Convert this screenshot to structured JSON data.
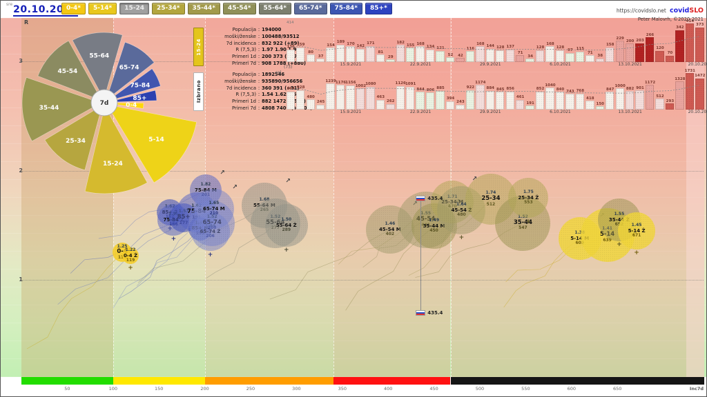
{
  "header": {
    "weekday": "sre",
    "date": "20.10.2021",
    "site_url": "https://covidslo.net",
    "brand_covid": "covid",
    "brand_slo": "SLO",
    "credit": "Peter Malovrh, ©2020-2021",
    "age_buttons": [
      {
        "label": "0-4*",
        "bg": "#f3c713",
        "fg": "#ffffff",
        "selected": false
      },
      {
        "label": "5-14*",
        "bg": "#e9c81d",
        "fg": "#ffffff",
        "selected": false
      },
      {
        "label": "15-24",
        "bg": "#a0a0a0",
        "fg": "#ececec",
        "selected": true
      },
      {
        "label": "25-34*",
        "bg": "#b3a63e",
        "fg": "#ffffff",
        "selected": false
      },
      {
        "label": "35-44*",
        "bg": "#a29a4b",
        "fg": "#ffffff",
        "selected": false
      },
      {
        "label": "45-54*",
        "bg": "#909058",
        "fg": "#ffffff",
        "selected": false
      },
      {
        "label": "55-64*",
        "bg": "#7c7f6e",
        "fg": "#ffffff",
        "selected": false
      },
      {
        "label": "65-74*",
        "bg": "#5a6a9b",
        "fg": "#ffffff",
        "selected": false
      },
      {
        "label": "75-84*",
        "bg": "#3c55b2",
        "fg": "#ffffff",
        "selected": false
      },
      {
        "label": "85+*",
        "bg": "#2d43c0",
        "fg": "#ffffff",
        "selected": false
      }
    ]
  },
  "info_panels": [
    {
      "tab": "15-24",
      "tab_bg": "#e3c51c",
      "tab_fg": "#ffffff",
      "rows": [
        [
          "Populacija",
          "194000"
        ],
        [
          "moški/ženske",
          "100488/93512"
        ],
        [
          "7d incidenca",
          "832 922 (+89)"
        ],
        [
          "R (7,5,3)",
          "1.97 1.90 1.92"
        ],
        [
          "Primeri 1d",
          "200 373 (+173)"
        ],
        [
          "Primeri 7d",
          "908 1788 (+880)"
        ]
      ]
    },
    {
      "tab": "Izbrano",
      "tab_bg": "#ffffff",
      "tab_fg": "#222222",
      "rows": [
        [
          "Populacija",
          "1892546"
        ],
        [
          "moški/ženske",
          "935890/956656"
        ],
        [
          "7d incidenca",
          "360 391 (+31)"
        ],
        [
          "R (7,5,3)",
          "1.54 1.62 1.66"
        ],
        [
          "Primeri 1d",
          "882 1472 (+590)"
        ],
        [
          "Primeri 7d",
          "4808 7409 (+2601)"
        ]
      ]
    }
  ],
  "aux_labels": {
    "sel": "sel.",
    "count": "(73)",
    "chartA_max": "414"
  },
  "chart_data": [
    {
      "type": "bar",
      "name": "bars-age-15-24",
      "date_ticks": [
        {
          "index": 6,
          "label": "15.9.2021"
        },
        {
          "index": 13,
          "label": "22.9.2021"
        },
        {
          "index": 20,
          "label": "29.9.2021"
        },
        {
          "index": 27,
          "label": "6.10.2021"
        },
        {
          "index": 34,
          "label": "13.10.2021"
        },
        {
          "index": 41,
          "label": "20.10.2021"
        }
      ],
      "values": [
        136,
        159,
        80,
        37,
        154,
        189,
        170,
        142,
        171,
        81,
        29,
        182,
        155,
        168,
        134,
        121,
        52,
        42,
        116,
        168,
        144,
        128,
        137,
        71,
        34,
        128,
        168,
        128,
        97,
        115,
        71,
        38,
        158,
        229,
        200,
        203,
        266,
        120,
        70,
        342,
        414,
        373
      ],
      "ymax": 430
    },
    {
      "type": "bar",
      "name": "bars-izbrano",
      "date_ticks": [
        {
          "index": 6,
          "label": "15.9.2021"
        },
        {
          "index": 13,
          "label": "22.9.2021"
        },
        {
          "index": 20,
          "label": "29.9.2021"
        },
        {
          "index": 27,
          "label": "6.10.2021"
        },
        {
          "index": 34,
          "label": "13.10.2021"
        },
        {
          "index": 41,
          "label": "20.10.2021"
        }
      ],
      "values": [
        864,
        928,
        480,
        245,
        1239,
        1176,
        1156,
        1002,
        1080,
        463,
        262,
        1126,
        1091,
        844,
        806,
        885,
        394,
        243,
        922,
        1174,
        884,
        845,
        856,
        461,
        191,
        852,
        1040,
        840,
        743,
        768,
        418,
        150,
        847,
        1000,
        882,
        901,
        1172,
        512,
        293,
        1328,
        1731,
        1472
      ],
      "ymax": 1830
    },
    {
      "type": "pie",
      "name": "age-rose",
      "center_label": "7d",
      "wedges": [
        {
          "label": "55-64",
          "a0": -28,
          "a1": 16,
          "r": 97,
          "color": "#787c85"
        },
        {
          "label": "65-74",
          "a0": 18,
          "a1": 52,
          "r": 88,
          "color": "#5a6a9b"
        },
        {
          "label": "75-84",
          "a0": 54,
          "a1": 74,
          "r": 80,
          "color": "#4156af"
        },
        {
          "label": "85+",
          "a0": 76,
          "a1": 88,
          "r": 71,
          "color": "#2c40b0"
        },
        {
          "label": "0-4",
          "a0": 90,
          "a1": 99,
          "r": 52,
          "color": "#fed60a"
        },
        {
          "label": "5-14",
          "a0": 101,
          "a1": 149,
          "r": 132,
          "color": "#eed318"
        },
        {
          "label": "15-24",
          "a0": 151,
          "a1": 193,
          "r": 127,
          "color": "#d5ba2e"
        },
        {
          "label": "25-34",
          "a0": 195,
          "a1": 239,
          "r": 97,
          "color": "#b6a63f"
        },
        {
          "label": "35-44",
          "a0": 241,
          "a1": 289,
          "r": 114,
          "color": "#9a9752"
        },
        {
          "label": "45-54",
          "a0": 291,
          "a1": 331,
          "r": 99,
          "color": "#8b8b61"
        }
      ]
    },
    {
      "type": "scatter",
      "name": "r-vs-inc7d",
      "y_axis": {
        "label": "R",
        "ticks": [
          1,
          2,
          3
        ]
      },
      "x_axis": {
        "label": "Inc7d",
        "ticks": [
          50,
          100,
          150,
          200,
          250,
          300,
          350,
          400,
          450,
          500,
          550,
          600,
          650
        ],
        "bands": [
          {
            "from": 0,
            "to": 100,
            "color": "#22dd00",
            "overlay": "rgba(196,150,86,0.30)"
          },
          {
            "from": 100,
            "to": 200,
            "color": "#ffe800",
            "overlay": "rgba(235,160,110,0.10)"
          },
          {
            "from": 200,
            "to": 340,
            "color": "#ff9d00",
            "overlay": "rgba(245,120,95,0.16)"
          },
          {
            "from": 340,
            "to": 468,
            "color": "#ff1111",
            "overlay": "rgba(246,90,80,0.20)"
          },
          {
            "from": 468,
            "to": 745,
            "color": "#151515",
            "overlay": "rgba(242,105,95,0.22)"
          }
        ]
      },
      "marker": {
        "label": "435.4",
        "value": 435.4
      },
      "families": {
        "85": {
          "fill": "rgba(70,86,190,0.60)",
          "text": "#222a6e",
          "line": "#5566bb"
        },
        "75": {
          "fill": "rgba(88,102,200,0.52)",
          "text": "#26307a",
          "line": "#6677c0"
        },
        "65": {
          "fill": "rgba(120,132,205,0.50)",
          "text": "#2d3880",
          "line": "#7788c5"
        },
        "55": {
          "fill": "rgba(150,150,138,0.52)",
          "text": "#4c4c38",
          "line": "#8a8a78"
        },
        "45": {
          "fill": "rgba(162,155,108,0.50)",
          "text": "#5c552a",
          "line": "#968e5e"
        },
        "35": {
          "fill": "rgba(158,150,84,0.52)",
          "text": "#57511f",
          "line": "#948c52"
        },
        "25": {
          "fill": "rgba(180,168,88,0.52)",
          "text": "#5f5820",
          "line": "#a89c58"
        },
        "5": {
          "fill": "rgba(240,214,58,0.82)",
          "text": "#6e5c08",
          "line": "#c8ac20"
        },
        "0": {
          "fill": "rgba(246,206,40,0.88)",
          "text": "#6e5c08",
          "line": "#c8ac20"
        }
      },
      "bubbles": [
        {
          "group": "85+ Ž",
          "R": "1.62",
          "inc": 162,
          "radius": 19,
          "family": "85",
          "main": false
        },
        {
          "group": "75-84 Ž",
          "R": "1.55",
          "inc": 166,
          "radius": 23,
          "family": "75",
          "main": false
        },
        {
          "group": "85+",
          "R": "1.57",
          "inc": 177,
          "radius": 21,
          "family": "85",
          "main": true
        },
        {
          "group": "75-84",
          "R": "1.62",
          "inc": 191,
          "radius": 29,
          "family": "75",
          "main": true
        },
        {
          "group": "85+ M",
          "R": "1.47",
          "inc": 195,
          "radius": 17,
          "family": "85",
          "main": false
        },
        {
          "group": "75-84 M",
          "R": "1.82",
          "inc": 201,
          "radius": 23,
          "family": "75",
          "main": false
        },
        {
          "group": "65-74 Ž",
          "R": "1.44",
          "inc": 206,
          "radius": 28,
          "family": "65",
          "main": false
        },
        {
          "group": "65-74",
          "R": "1.52",
          "inc": 208,
          "radius": 33,
          "family": "65",
          "main": true
        },
        {
          "group": "65-74 M",
          "R": "1.65",
          "inc": 210,
          "radius": 29,
          "family": "65",
          "main": false
        },
        {
          "group": "55-64 M",
          "R": "1.68",
          "inc": 265,
          "radius": 33,
          "family": "55",
          "main": false
        },
        {
          "group": "55-64",
          "R": "1.52",
          "inc": 277,
          "radius": 36,
          "family": "55",
          "main": true
        },
        {
          "group": "55-64 Ž",
          "R": "1.50",
          "inc": 289,
          "radius": 31,
          "family": "55",
          "main": false
        },
        {
          "group": "45-54 M",
          "R": "1.46",
          "inc": 402,
          "radius": 35,
          "family": "45",
          "main": false
        },
        {
          "group": "45-54",
          "R": "1.55",
          "inc": 441,
          "radius": 41,
          "family": "45",
          "main": true
        },
        {
          "group": "35-44 M",
          "R": "1.49",
          "inc": 450,
          "radius": 33,
          "family": "35",
          "main": false
        },
        {
          "group": "25-34 M",
          "R": "1.71",
          "inc": 470,
          "radius": 31,
          "family": "25",
          "main": false
        },
        {
          "group": "45-54 Ž",
          "R": "1.64",
          "inc": 480,
          "radius": 35,
          "family": "45",
          "main": false
        },
        {
          "group": "25-34",
          "R": "1.74",
          "inc": 512,
          "radius": 37,
          "family": "25",
          "main": true
        },
        {
          "group": "35-44",
          "R": "1.52",
          "inc": 547,
          "radius": 40,
          "family": "35",
          "main": true
        },
        {
          "group": "25-34 Ž",
          "R": "1.75",
          "inc": 553,
          "radius": 29,
          "family": "25",
          "main": false
        },
        {
          "group": "5-14 M",
          "R": "1.38",
          "inc": 609,
          "radius": 31,
          "family": "5",
          "main": false
        },
        {
          "group": "5-14",
          "R": "1.41",
          "inc": 639,
          "radius": 39,
          "family": "5",
          "main": true
        },
        {
          "group": "35-44 Ž",
          "R": "1.55",
          "inc": 652,
          "radius": 31,
          "family": "35",
          "main": false
        },
        {
          "group": "5-14 Ž",
          "R": "1.45",
          "inc": 671,
          "radius": 27,
          "family": "5",
          "main": false
        },
        {
          "group": "0-4",
          "R": "1.25",
          "inc": 110,
          "radius": 14,
          "family": "0",
          "main": true
        },
        {
          "group": "0-4 Ž",
          "R": "1.22",
          "inc": 119,
          "radius": 12,
          "family": "0",
          "main": false
        }
      ]
    }
  ]
}
